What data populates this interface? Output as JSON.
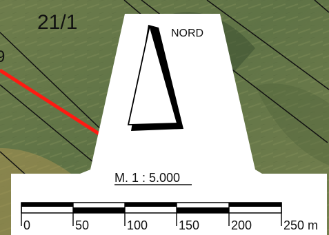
{
  "map": {
    "parcel_label": "21/1",
    "partial_parcel_label": "9",
    "north_label": "NORD",
    "scale_text": "M. 1 : 5.000",
    "scale_ticks": [
      "0",
      "50",
      "100",
      "150",
      "200",
      "250 m"
    ],
    "colors": {
      "boundary_line": "#ff1a12",
      "parcel_line": "#111111",
      "legend_background": "#ffffff"
    },
    "icons": {
      "north_arrow": "north-arrow-icon"
    }
  }
}
